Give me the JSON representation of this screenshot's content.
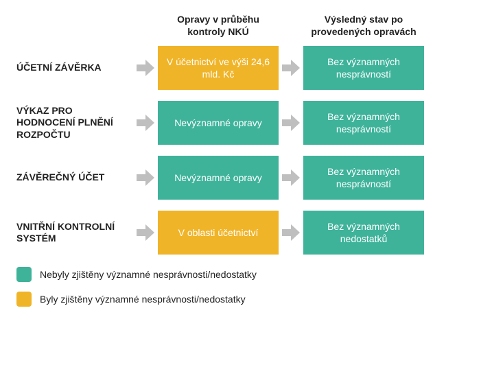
{
  "type": "flowchart",
  "background_color": "#ffffff",
  "arrow_color": "#bfbfbf",
  "colors": {
    "teal": "#3eb39a",
    "yellow": "#f0b428",
    "text_dark": "#222222",
    "box_text": "#ffffff"
  },
  "fonts": {
    "header_size": 14,
    "header_weight": 700,
    "label_size": 14,
    "label_weight": 700,
    "box_size": 14,
    "legend_size": 14
  },
  "headers": {
    "col1": "Opravy v průběhu kontroly NKÚ",
    "col2": "Výsledný stav po provedených opravách"
  },
  "rows": [
    {
      "label": "ÚČETNÍ ZÁVĚRKA",
      "box1": {
        "text": "V účetnictví ve výši 24,6 mld. Kč",
        "status": "significant"
      },
      "box2": {
        "text": "Bez významných nesprávností",
        "status": "ok"
      }
    },
    {
      "label": "VÝKAZ PRO HODNOCENÍ PLNĚNÍ ROZPOČTU",
      "box1": {
        "text": "Nevýznamné opravy",
        "status": "ok"
      },
      "box2": {
        "text": "Bez významných nesprávností",
        "status": "ok"
      }
    },
    {
      "label": "ZÁVĚREČNÝ ÚČET",
      "box1": {
        "text": "Nevýznamné opravy",
        "status": "ok"
      },
      "box2": {
        "text": "Bez významných nesprávností",
        "status": "ok"
      }
    },
    {
      "label": "VNITŘNÍ KONTROLNÍ SYSTÉM",
      "box1": {
        "text": "V oblasti účetnictví",
        "status": "significant"
      },
      "box2": {
        "text": "Bez významných nedostatků",
        "status": "ok"
      }
    }
  ],
  "legend": [
    {
      "status": "ok",
      "text": "Nebyly zjištěny významné nesprávnosti/nedostatky"
    },
    {
      "status": "significant",
      "text": "Byly zjištěny významné nesprávnosti/nedostatky"
    }
  ],
  "status_colors": {
    "ok": "#3eb39a",
    "significant": "#f0b428"
  }
}
